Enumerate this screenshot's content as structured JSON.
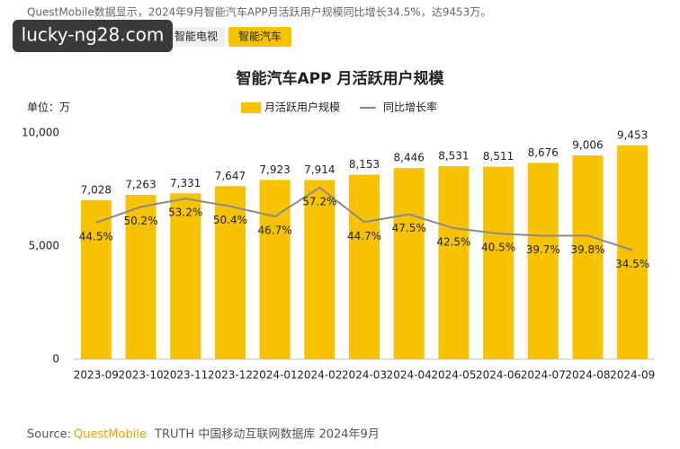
{
  "header": {
    "text": "QuestMobile数据显示，2024年9月智能汽车APP月活跃用户规模同比增长34.5%，达9453万。",
    "watermark": "lucky-ng28.com",
    "tabs": [
      "智能电视",
      "智能汽车"
    ]
  },
  "chart_data": {
    "type": "bar",
    "title": "智能汽车APP 月活跃用户规模",
    "unit_label": "单位：万",
    "categories": [
      "2023-09",
      "2023-10",
      "2023-11",
      "2023-12",
      "2024-01",
      "2024-02",
      "2024-03",
      "2024-04",
      "2024-05",
      "2024-06",
      "2024-07",
      "2024-08",
      "2024-09"
    ],
    "series": [
      {
        "name": "月活跃用户规模",
        "type": "bar",
        "color": "#f7c300",
        "values": [
          7028,
          7263,
          7331,
          7647,
          7923,
          7914,
          8153,
          8446,
          8531,
          8511,
          8676,
          9006,
          9453
        ],
        "value_labels": [
          "7,028",
          "7,263",
          "7,331",
          "7,647",
          "7,923",
          "7,914",
          "8,153",
          "8,446",
          "8,531",
          "8,511",
          "8,676",
          "9,006",
          "9,453"
        ]
      },
      {
        "name": "同比增长率",
        "type": "line",
        "axis": "y2",
        "color": "#8a8a8a",
        "values": [
          44.5,
          50.2,
          53.2,
          50.4,
          46.7,
          57.2,
          44.7,
          47.5,
          42.5,
          40.5,
          39.7,
          39.8,
          34.5
        ],
        "value_labels": [
          "44.5%",
          "50.2%",
          "53.2%",
          "50.4%",
          "46.7%",
          "57.2%",
          "44.7%",
          "47.5%",
          "42.5%",
          "40.5%",
          "39.7%",
          "39.8%",
          "34.5%"
        ]
      }
    ],
    "ylim": [
      0,
      10000
    ],
    "yticks": [
      0,
      {
        "value": 5000,
        "label": "5,000"
      },
      {
        "value": 10000,
        "label": "10,000"
      }
    ],
    "y2lim": [
      -5,
      77
    ],
    "grid": false
  },
  "source": {
    "prefix": "Source:",
    "brand": "QuestMobile",
    "rest": "TRUTH 中国移动互联网数据库 2024年9月"
  }
}
